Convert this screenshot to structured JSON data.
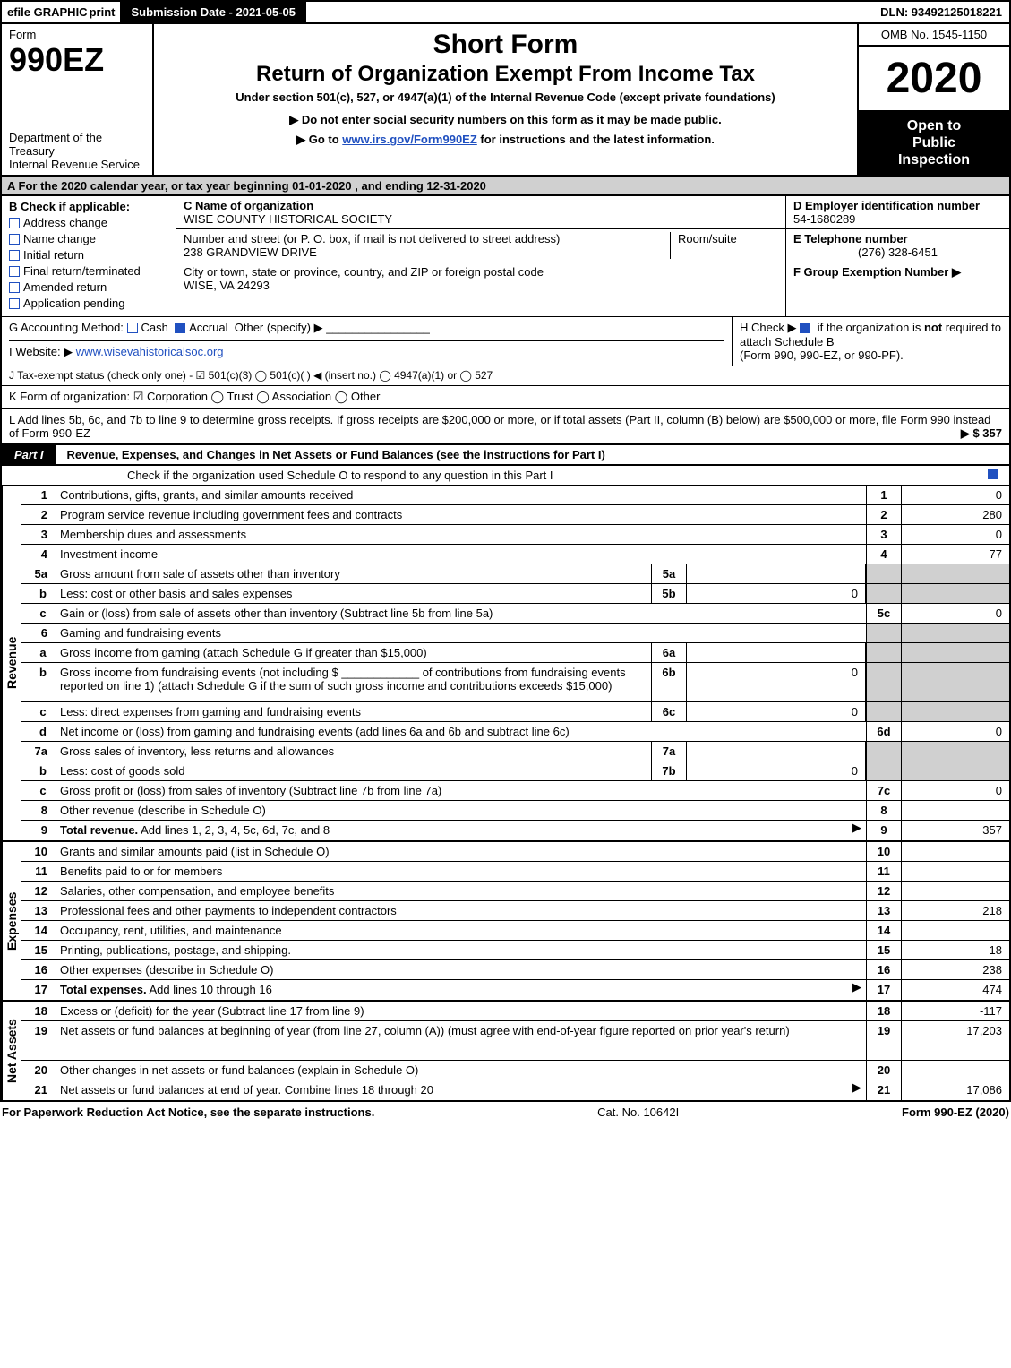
{
  "topbar": {
    "efile": "efile GRAPHIC",
    "print": "print",
    "submission": "Submission Date - 2021-05-05",
    "dln": "DLN: 93492125018221"
  },
  "header": {
    "form_word": "Form",
    "form_num": "990EZ",
    "dept1": "Department of the Treasury",
    "dept2": "Internal Revenue Service",
    "short_form": "Short Form",
    "title": "Return of Organization Exempt From Income Tax",
    "subtitle": "Under section 501(c), 527, or 4947(a)(1) of the Internal Revenue Code (except private foundations)",
    "note1": "▶ Do not enter social security numbers on this form as it may be made public.",
    "note2_pre": "▶ Go to ",
    "note2_link": "www.irs.gov/Form990EZ",
    "note2_post": " for instructions and the latest information.",
    "omb": "OMB No. 1545-1150",
    "year": "2020",
    "open1": "Open to",
    "open2": "Public",
    "open3": "Inspection"
  },
  "rowA": "A  For the 2020 calendar year, or tax year beginning 01-01-2020 , and ending 12-31-2020",
  "B": {
    "hdr": "B  Check if applicable:",
    "items": [
      "Address change",
      "Name change",
      "Initial return",
      "Final return/terminated",
      "Amended return",
      "Application pending"
    ]
  },
  "C": {
    "hdr": "C Name of organization",
    "name": "WISE COUNTY HISTORICAL SOCIETY",
    "addr_hdr": "Number and street (or P. O. box, if mail is not delivered to street address)",
    "addr": "238 GRANDVIEW DRIVE",
    "room_hdr": "Room/suite",
    "city_hdr": "City or town, state or province, country, and ZIP or foreign postal code",
    "city": "WISE, VA  24293"
  },
  "D": {
    "hdr": "D Employer identification number",
    "val": "54-1680289",
    "E_hdr": "E Telephone number",
    "E_val": "(276) 328-6451",
    "F_hdr": "F Group Exemption Number  ▶"
  },
  "G": {
    "lbl": "G Accounting Method:",
    "cash": "Cash",
    "accrual": "Accrual",
    "other": "Other (specify) ▶"
  },
  "H": {
    "text1": "H  Check ▶ ",
    "text2": " if the organization is ",
    "not": "not",
    "text3": " required to attach Schedule B",
    "text4": "(Form 990, 990-EZ, or 990-PF)."
  },
  "I": {
    "lbl": "I Website: ▶",
    "val": "www.wisevahistoricalsoc.org"
  },
  "J": "J Tax-exempt status (check only one) - ☑ 501(c)(3)  ◯ 501(c)(  ) ◀ (insert no.)  ◯ 4947(a)(1) or  ◯ 527",
  "K": "K Form of organization:   ☑ Corporation   ◯ Trust   ◯ Association   ◯ Other",
  "L": {
    "text": "L Add lines 5b, 6c, and 7b to line 9 to determine gross receipts. If gross receipts are $200,000 or more, or if total assets (Part II, column (B) below) are $500,000 or more, file Form 990 instead of Form 990-EZ",
    "amt": "▶ $ 357"
  },
  "part1": {
    "tag": "Part I",
    "title": "Revenue, Expenses, and Changes in Net Assets or Fund Balances (see the instructions for Part I)",
    "check_line": "Check if the organization used Schedule O to respond to any question in this Part I"
  },
  "sections": {
    "revenue_label": "Revenue",
    "expenses_label": "Expenses",
    "netassets_label": "Net Assets"
  },
  "revenue_rows": [
    {
      "n": "1",
      "desc": "Contributions, gifts, grants, and similar amounts received",
      "rlab": "1",
      "rval": "0"
    },
    {
      "n": "2",
      "desc": "Program service revenue including government fees and contracts",
      "rlab": "2",
      "rval": "280"
    },
    {
      "n": "3",
      "desc": "Membership dues and assessments",
      "rlab": "3",
      "rval": "0"
    },
    {
      "n": "4",
      "desc": "Investment income",
      "rlab": "4",
      "rval": "77"
    },
    {
      "n": "5a",
      "desc": "Gross amount from sale of assets other than inventory",
      "mlab": "5a",
      "mval": "",
      "rlab": "",
      "rval": "",
      "grey_r": true
    },
    {
      "n": "b",
      "sub": true,
      "desc": "Less: cost or other basis and sales expenses",
      "mlab": "5b",
      "mval": "0",
      "rlab": "",
      "rval": "",
      "grey_r": true
    },
    {
      "n": "c",
      "sub": true,
      "desc": "Gain or (loss) from sale of assets other than inventory (Subtract line 5b from line 5a)",
      "rlab": "5c",
      "rval": "0"
    },
    {
      "n": "6",
      "desc": "Gaming and fundraising events",
      "rlab": "",
      "rval": "",
      "grey_r": true,
      "no_right_border": true
    },
    {
      "n": "a",
      "sub": true,
      "desc": "Gross income from gaming (attach Schedule G if greater than $15,000)",
      "mlab": "6a",
      "mval": "",
      "rlab": "",
      "rval": "",
      "grey_r": true
    },
    {
      "n": "b",
      "sub": true,
      "desc": "Gross income from fundraising events (not including $ ____________ of contributions from fundraising events reported on line 1) (attach Schedule G if the sum of such gross income and contributions exceeds $15,000)",
      "mlab": "6b",
      "mval": "0",
      "rlab": "",
      "rval": "",
      "grey_r": true,
      "tall": true
    },
    {
      "n": "c",
      "sub": true,
      "desc": "Less: direct expenses from gaming and fundraising events",
      "mlab": "6c",
      "mval": "0",
      "rlab": "",
      "rval": "",
      "grey_r": true
    },
    {
      "n": "d",
      "sub": true,
      "desc": "Net income or (loss) from gaming and fundraising events (add lines 6a and 6b and subtract line 6c)",
      "rlab": "6d",
      "rval": "0"
    },
    {
      "n": "7a",
      "desc": "Gross sales of inventory, less returns and allowances",
      "mlab": "7a",
      "mval": "",
      "rlab": "",
      "rval": "",
      "grey_r": true
    },
    {
      "n": "b",
      "sub": true,
      "desc": "Less: cost of goods sold",
      "mlab": "7b",
      "mval": "0",
      "rlab": "",
      "rval": "",
      "grey_r": true
    },
    {
      "n": "c",
      "sub": true,
      "desc": "Gross profit or (loss) from sales of inventory (Subtract line 7b from line 7a)",
      "rlab": "7c",
      "rval": "0"
    },
    {
      "n": "8",
      "desc": "Other revenue (describe in Schedule O)",
      "rlab": "8",
      "rval": ""
    },
    {
      "n": "9",
      "desc": "Total revenue. Add lines 1, 2, 3, 4, 5c, 6d, 7c, and 8",
      "rlab": "9",
      "rval": "357",
      "bold": true,
      "arrow": true
    }
  ],
  "expense_rows": [
    {
      "n": "10",
      "desc": "Grants and similar amounts paid (list in Schedule O)",
      "rlab": "10",
      "rval": ""
    },
    {
      "n": "11",
      "desc": "Benefits paid to or for members",
      "rlab": "11",
      "rval": ""
    },
    {
      "n": "12",
      "desc": "Salaries, other compensation, and employee benefits",
      "rlab": "12",
      "rval": ""
    },
    {
      "n": "13",
      "desc": "Professional fees and other payments to independent contractors",
      "rlab": "13",
      "rval": "218"
    },
    {
      "n": "14",
      "desc": "Occupancy, rent, utilities, and maintenance",
      "rlab": "14",
      "rval": ""
    },
    {
      "n": "15",
      "desc": "Printing, publications, postage, and shipping.",
      "rlab": "15",
      "rval": "18"
    },
    {
      "n": "16",
      "desc": "Other expenses (describe in Schedule O)",
      "rlab": "16",
      "rval": "238"
    },
    {
      "n": "17",
      "desc": "Total expenses. Add lines 10 through 16",
      "rlab": "17",
      "rval": "474",
      "bold": true,
      "arrow": true
    }
  ],
  "netassets_rows": [
    {
      "n": "18",
      "desc": "Excess or (deficit) for the year (Subtract line 17 from line 9)",
      "rlab": "18",
      "rval": "-117"
    },
    {
      "n": "19",
      "desc": "Net assets or fund balances at beginning of year (from line 27, column (A)) (must agree with end-of-year figure reported on prior year's return)",
      "rlab": "19",
      "rval": "17,203",
      "tall": true
    },
    {
      "n": "20",
      "desc": "Other changes in net assets or fund balances (explain in Schedule O)",
      "rlab": "20",
      "rval": ""
    },
    {
      "n": "21",
      "desc": "Net assets or fund balances at end of year. Combine lines 18 through 20",
      "rlab": "21",
      "rval": "17,086",
      "arrow": true
    }
  ],
  "footer": {
    "left": "For Paperwork Reduction Act Notice, see the separate instructions.",
    "center": "Cat. No. 10642I",
    "right_pre": "Form ",
    "right_form": "990-EZ",
    "right_post": " (2020)"
  },
  "colors": {
    "grey": "#d0d0d0",
    "link": "#2050c0"
  }
}
